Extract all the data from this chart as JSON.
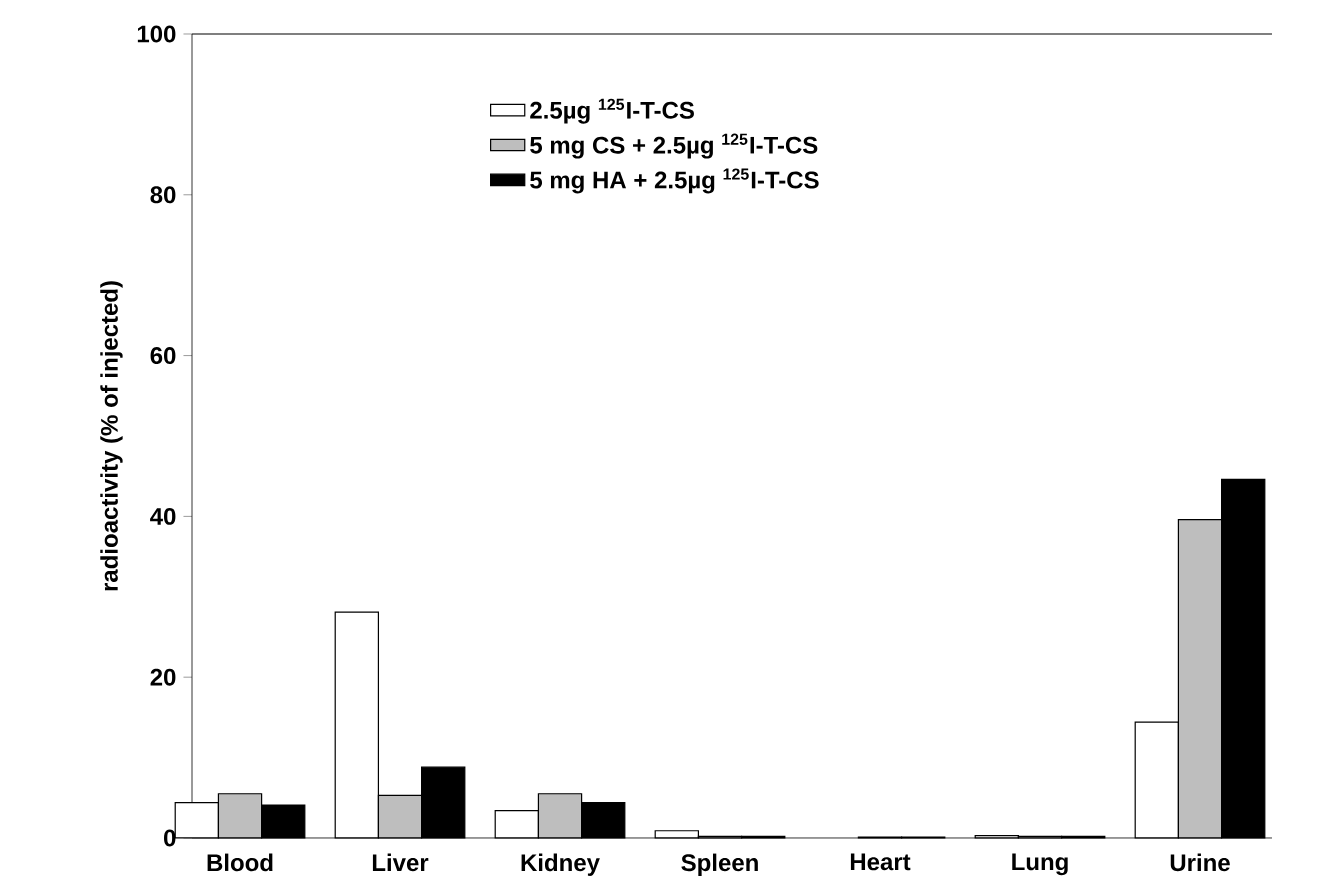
{
  "chart_data": {
    "type": "bar",
    "ylabel": "radioactivity (% of injected)",
    "categories": [
      "Blood",
      "Liver",
      "Kidney",
      "Spleen",
      "Heart",
      "Lung",
      "Urine"
    ],
    "series": [
      {
        "name": "2.5µg  $^{125}$I-T-CS",
        "color": "#ffffff",
        "values": [
          4.4,
          28.1,
          3.4,
          0.9,
          null,
          0.3,
          14.4
        ]
      },
      {
        "name": "5 mg CS + 2.5µg  $^{125}$I-T-CS",
        "color": "#bebebe",
        "values": [
          5.5,
          5.3,
          5.5,
          0.2,
          0.1,
          0.2,
          39.6
        ]
      },
      {
        "name": "5 mg HA + 2.5µg  $^{125}$I-T-CS",
        "color": "#000000",
        "values": [
          4.1,
          8.8,
          4.4,
          0.2,
          0.1,
          0.2,
          44.6
        ]
      }
    ],
    "ylim": [
      0,
      100
    ],
    "yticks": [
      0,
      20,
      40,
      60,
      80,
      100
    ],
    "grid": false,
    "legend": "top"
  }
}
